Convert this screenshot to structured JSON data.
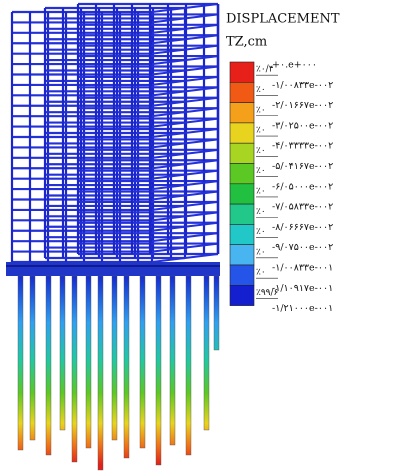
{
  "legend": {
    "title": "DISPLACEMENT",
    "unit": "TZ,cm",
    "colors": [
      "#e8201a",
      "#f05a14",
      "#f5a01a",
      "#e8d41e",
      "#a8d422",
      "#5cc824",
      "#22c040",
      "#22c88a",
      "#22c8c8",
      "#48b4f0",
      "#2454e8",
      "#1420d0"
    ],
    "percentages": [
      "٪۰/۴",
      "٪۰",
      "٪۰",
      "٪۰",
      "٪۰",
      "٪۰",
      "٪۰",
      "٪۰",
      "٪۰",
      "٪۰",
      "٪۰",
      "٪۹۹/۶"
    ],
    "values": [
      "+۰.e+۰۰۰",
      "-۱/۰۰۸۳۳e-۰۰۲",
      "-۲/۰۱۶۶۷e-۰۰۲",
      "-۳/۰۲۵۰۰e-۰۰۲",
      "-۴/۰۳۳۳۳e-۰۰۲",
      "-۵/۰۴۱۶۷e-۰۰۲",
      "-۶/۰۵۰۰۰e-۰۰۲",
      "-۷/۰۵۸۳۳e-۰۰۲",
      "-۸/۰۶۶۶۷e-۰۰۲",
      "-۹/۰۷۵۰۰e-۰۰۲",
      "-۱/۰۰۸۳۳e-۰۰۱",
      "-۱/۱۰۹۱۷e-۰۰۱",
      "-۱/۲۱۰۰۰e-۰۰۱"
    ]
  }
}
